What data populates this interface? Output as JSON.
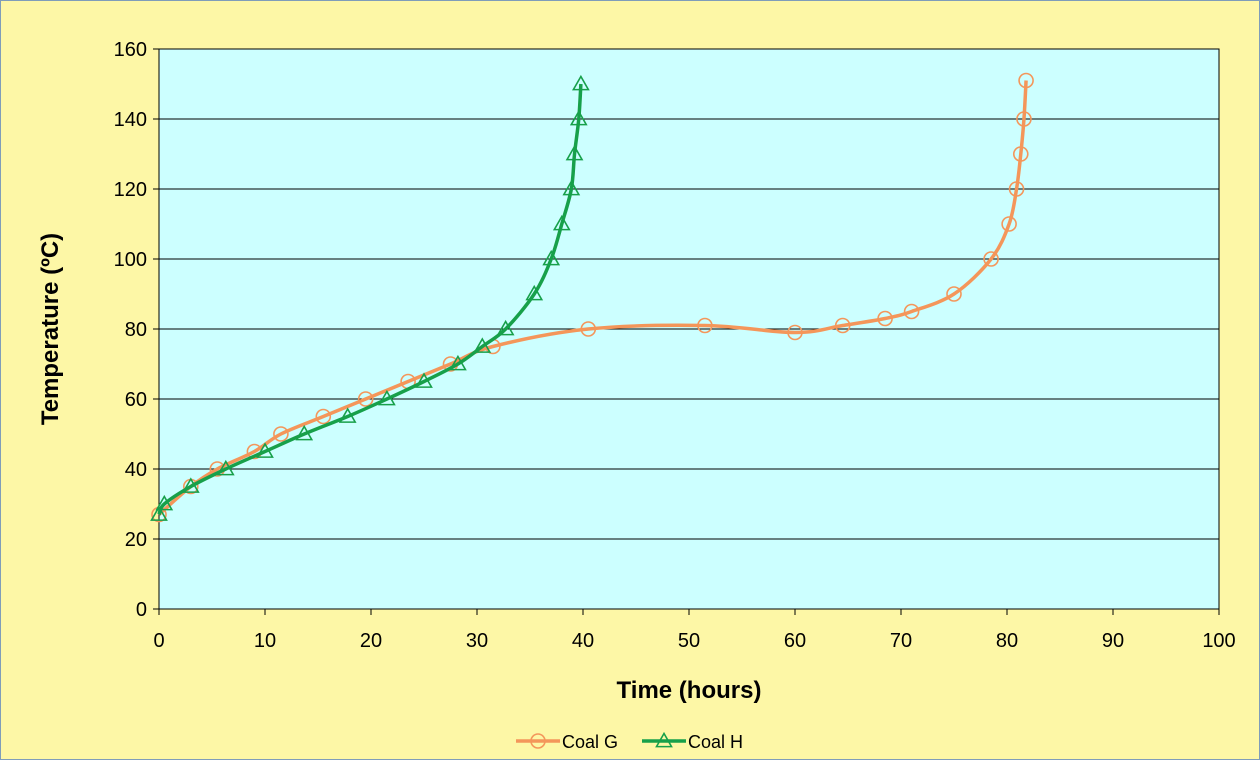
{
  "chart_data": {
    "type": "line",
    "title": "",
    "xlabel": "Time (hours)",
    "ylabel": "Temperature (ºC)",
    "xlim": [
      0,
      100
    ],
    "ylim": [
      0,
      160
    ],
    "x_ticks": [
      0,
      10,
      20,
      30,
      40,
      50,
      60,
      70,
      80,
      90,
      100
    ],
    "y_ticks": [
      0,
      20,
      40,
      60,
      80,
      100,
      120,
      140,
      160
    ],
    "grid": "horizontal",
    "legend_position": "bottom",
    "plot_background": "#ccffff",
    "chart_background": "#fdf7a6",
    "series": [
      {
        "name": "Coal G",
        "color": "#f4965a",
        "marker": "circle",
        "x": [
          0,
          3,
          5.5,
          9,
          11.5,
          15.5,
          19.5,
          23.5,
          27.5,
          31.5,
          40.5,
          51.5,
          60,
          64.5,
          68.5,
          71,
          75,
          78.5,
          80.2,
          80.9,
          81.3,
          81.6,
          81.8
        ],
        "y": [
          27,
          35,
          40,
          45,
          50,
          55,
          60,
          65,
          70,
          75,
          80,
          81,
          79,
          81,
          83,
          85,
          90,
          100,
          110,
          120,
          130,
          140,
          151
        ]
      },
      {
        "name": "Coal H",
        "color": "#17a04a",
        "marker": "triangle",
        "x": [
          0,
          0.5,
          3,
          6.3,
          10,
          13.7,
          17.8,
          21.5,
          25,
          28.2,
          30.5,
          32.7,
          35.4,
          37,
          38,
          38.9,
          39.2,
          39.6,
          39.8
        ],
        "y": [
          27,
          30,
          35,
          40,
          45,
          50,
          55,
          60,
          65,
          70,
          75,
          80,
          90,
          100,
          110,
          120,
          130,
          140,
          150
        ]
      }
    ]
  }
}
